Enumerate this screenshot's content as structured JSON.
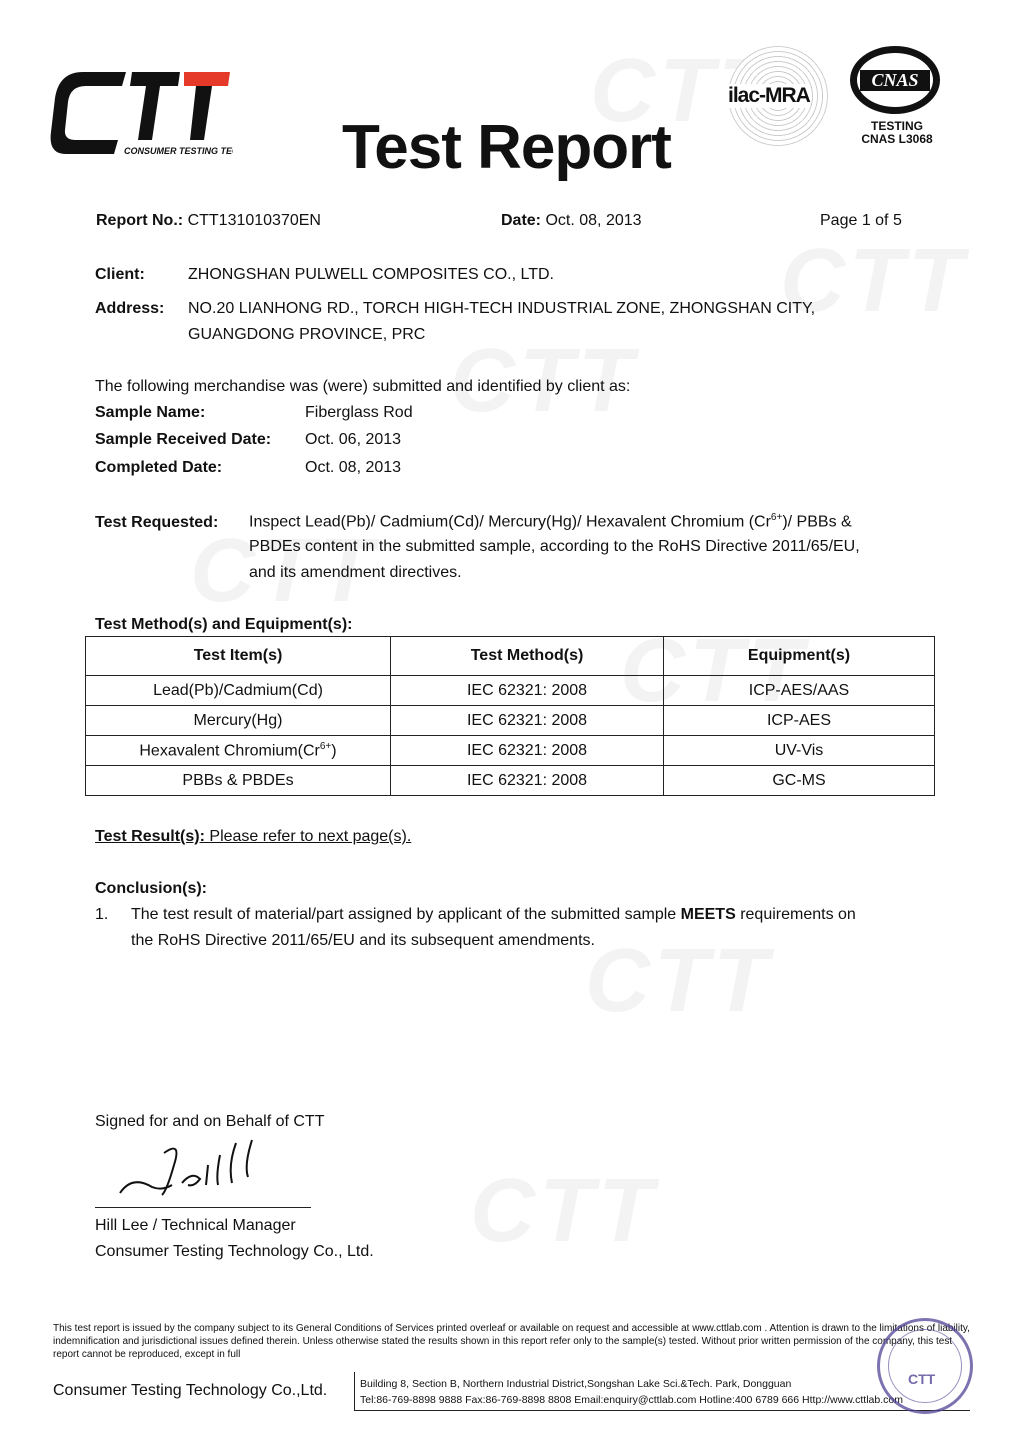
{
  "header": {
    "logo_text": "CTT",
    "logo_tagline": "CONSUMER TESTING TECH",
    "title": "Test Report",
    "ilac": "ilac-MRA",
    "cnas": "CNAS",
    "cnas_testing": "TESTING",
    "cnas_number": "CNAS L3068"
  },
  "meta": {
    "report_no_label": "Report No.:",
    "report_no": "CTT131010370EN",
    "date_label": "Date:",
    "date": "Oct. 08, 2013",
    "page": "Page 1 of 5"
  },
  "client": {
    "client_label": "Client:",
    "client": "ZHONGSHAN PULWELL COMPOSITES CO., LTD.",
    "address_label": "Address:",
    "address_line1": "NO.20 LIANHONG RD., TORCH HIGH-TECH INDUSTRIAL ZONE, ZHONGSHAN CITY,",
    "address_line2": "GUANGDONG PROVINCE, PRC"
  },
  "sample": {
    "intro": "The following merchandise was (were) submitted and identified by client as:",
    "name_label": "Sample Name:",
    "name": "Fiberglass Rod",
    "received_label": "Sample Received Date:",
    "received": "Oct. 06, 2013",
    "completed_label": "Completed Date:",
    "completed": "Oct. 08, 2013"
  },
  "test_requested": {
    "label": "Test Requested:",
    "line1a": "Inspect Lead(Pb)/ Cadmium(Cd)/ Mercury(Hg)/ Hexavalent Chromium (Cr",
    "sup": "6+",
    "line1b": ")/ PBBs &",
    "line2": "PBDEs content in the submitted sample, according to the RoHS Directive 2011/65/EU,",
    "line3": "and its amendment directives."
  },
  "methods": {
    "heading": "Test Method(s) and Equipment(s):",
    "columns": [
      "Test Item(s)",
      "Test Method(s)",
      "Equipment(s)"
    ],
    "rows": [
      [
        "Lead(Pb)/Cadmium(Cd)",
        "IEC 62321: 2008",
        "ICP-AES/AAS"
      ],
      [
        "Mercury(Hg)",
        "IEC 62321: 2008",
        "ICP-AES"
      ],
      [
        "Hexavalent Chromium(Cr",
        "IEC 62321: 2008",
        "UV-Vis"
      ],
      [
        "PBBs & PBDEs",
        "IEC 62321: 2008",
        "GC-MS"
      ]
    ],
    "row3_sup": "6+",
    "row3_suffix": ")"
  },
  "result": {
    "label": "Test Result(s):",
    "text": "Please refer to next page(s)."
  },
  "conclusion": {
    "label": "Conclusion(s):",
    "num": "1.",
    "text_a": "The test result of material/part assigned by applicant of the submitted sample ",
    "bold": "MEETS",
    "text_b": " requirements on",
    "line2": "the RoHS Directive 2011/65/EU and its subsequent amendments."
  },
  "signature": {
    "signed_for": "Signed for and on Behalf of CTT",
    "signature_text": "Hill",
    "name": "Hill Lee / Technical Manager",
    "company": "Consumer Testing Technology Co., Ltd."
  },
  "footer": {
    "disclaimer": "This test report is issued by the company subject to its General Conditions of Services printed overleaf or available on request and accessible at www.cttlab.com . Attention is drawn to the limitations of liability, indemnification and jurisdictional issues defined therein. Unless otherwise stated the results shown in this report refer only to the sample(s) tested. Without prior written permission of the company, this test report cannot be reproduced, except in full",
    "company": "Consumer Testing Technology Co.,Ltd.",
    "address": "Building 8, Section B, Northern Industrial District,Songshan Lake Sci.&Tech. Park, Dongguan",
    "contact": "Tel:86-769-8898 9888  Fax:86-769-8898 8808   Email:enquiry@cttlab.com  Hotline:400 6789 666   Http://www.cttlab.com",
    "stamp_text": "CTT"
  }
}
